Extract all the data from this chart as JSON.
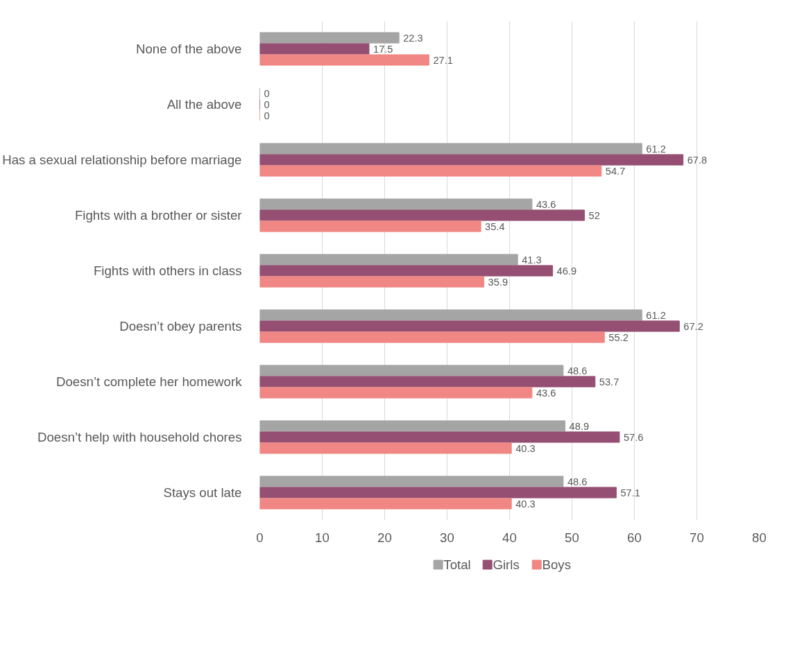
{
  "chart_data": {
    "type": "bar",
    "orientation": "horizontal",
    "categories": [
      "None of the above",
      "All the above",
      "Has a sexual relationship before marriage",
      "Fights with a brother or sister",
      "Fights with others in class",
      "Doesn’t obey parents",
      "Doesn’t complete her homework",
      "Doesn’t help with household chores",
      "Stays out late"
    ],
    "series": [
      {
        "name": "Total",
        "color": "#a5a5a5",
        "values": [
          22.3,
          0,
          61.2,
          43.6,
          41.3,
          61.2,
          48.6,
          48.9,
          48.6
        ]
      },
      {
        "name": "Girls",
        "color": "#954f72",
        "values": [
          17.5,
          0,
          67.8,
          52,
          46.9,
          67.2,
          53.7,
          57.6,
          57.1
        ]
      },
      {
        "name": "Boys",
        "color": "#f08784",
        "values": [
          27.1,
          0,
          54.7,
          35.4,
          35.9,
          55.2,
          43.6,
          40.3,
          40.3
        ]
      }
    ],
    "xlim": [
      0,
      80
    ],
    "xticks": [
      0,
      10,
      20,
      30,
      40,
      50,
      60,
      70,
      80
    ],
    "grid": "x",
    "legend": "bottom",
    "data_labels": true
  }
}
